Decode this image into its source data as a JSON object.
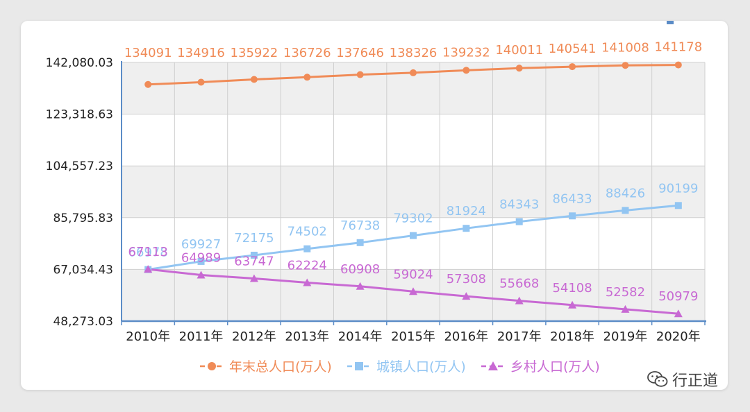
{
  "chart_data": {
    "type": "line",
    "title": "",
    "xlabel": "",
    "ylabel": "",
    "categories": [
      "2010年",
      "2011年",
      "2012年",
      "2013年",
      "2014年",
      "2015年",
      "2016年",
      "2017年",
      "2018年",
      "2019年",
      "2020年"
    ],
    "ylim": [
      48273.03,
      142080.03
    ],
    "y_ticks": [
      "142,080.03",
      "123,318.63",
      "104,557.23",
      "85,795.83",
      "67,034.43",
      "48,273.03"
    ],
    "grid": true,
    "legend_position": "bottom-center",
    "series": [
      {
        "name": "年末总人口(万人)",
        "color": "#f08b57",
        "marker": "circle",
        "values": [
          134091,
          134916,
          135922,
          136726,
          137646,
          138326,
          139232,
          140011,
          140541,
          141008,
          141178
        ]
      },
      {
        "name": "城镇人口(万人)",
        "color": "#92c5f2",
        "marker": "square",
        "values": [
          66978,
          69927,
          72175,
          74502,
          76738,
          79302,
          81924,
          84343,
          86433,
          88426,
          90199
        ]
      },
      {
        "name": "乡村人口(万人)",
        "color": "#c869d3",
        "marker": "triangle",
        "values": [
          67113,
          64989,
          63747,
          62224,
          60908,
          59024,
          57308,
          55668,
          54108,
          52582,
          50979
        ]
      }
    ]
  },
  "watermark": {
    "text": "行正道",
    "icon": "wechat-icon"
  }
}
